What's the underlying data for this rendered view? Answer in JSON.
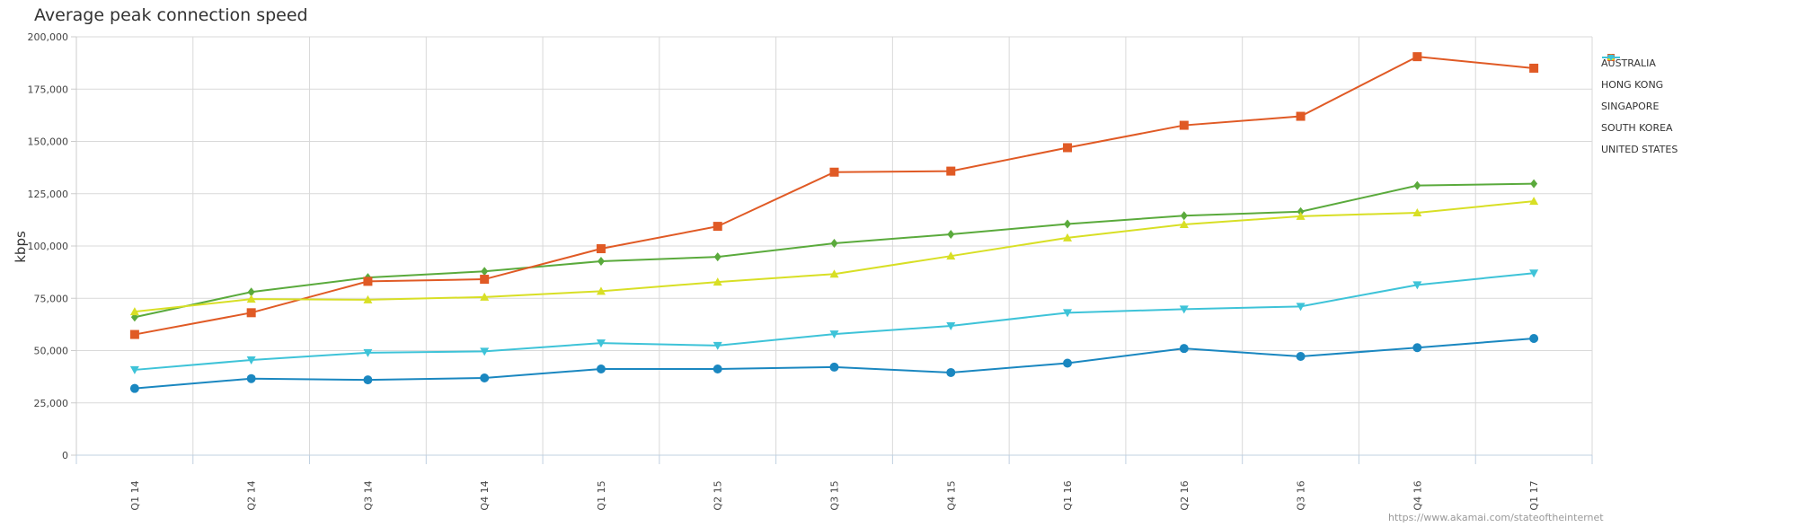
{
  "chart_data": {
    "type": "line",
    "title": "Average peak connection speed",
    "xlabel": "",
    "ylabel": "kbps",
    "ylim": [
      0,
      200000
    ],
    "yticks": [
      0,
      25000,
      50000,
      75000,
      100000,
      125000,
      150000,
      175000,
      200000
    ],
    "ytick_labels": [
      "0",
      "25,000",
      "50,000",
      "75,000",
      "100,000",
      "125,000",
      "150,000",
      "175,000",
      "200,000"
    ],
    "grid": true,
    "legend_position": "right",
    "categories": [
      "Q1 14",
      "Q2 14",
      "Q3 14",
      "Q4 14",
      "Q1 15",
      "Q2 15",
      "Q3 15",
      "Q4 15",
      "Q1 16",
      "Q2 16",
      "Q3 16",
      "Q4 16",
      "Q1 17"
    ],
    "series": [
      {
        "name": "AUSTRALIA",
        "color": "#1a87c0",
        "marker": "circle",
        "values": [
          31900,
          36600,
          36000,
          36900,
          41200,
          41200,
          42100,
          39500,
          44000,
          51000,
          47200,
          51400,
          55800
        ]
      },
      {
        "name": "HONG KONG",
        "color": "#5aaa3c",
        "marker": "diamond",
        "values": [
          66000,
          78000,
          84900,
          87900,
          92700,
          94800,
          101300,
          105600,
          110500,
          114500,
          116400,
          128900,
          129800
        ]
      },
      {
        "name": "SINGAPORE",
        "color": "#e05a25",
        "marker": "square",
        "values": [
          57700,
          68100,
          83100,
          84100,
          98700,
          109400,
          135300,
          135800,
          147000,
          157700,
          162000,
          190500,
          185000
        ]
      },
      {
        "name": "SOUTH KOREA",
        "color": "#d8df25",
        "marker": "triangle-up",
        "values": [
          68600,
          74600,
          74300,
          75600,
          78400,
          82800,
          86600,
          95200,
          103900,
          110300,
          114200,
          115900,
          121400
        ]
      },
      {
        "name": "UNITED STATES",
        "color": "#3ec3d8",
        "marker": "triangle-down",
        "values": [
          40800,
          45500,
          49000,
          49600,
          53600,
          52400,
          57900,
          61800,
          68100,
          69800,
          71100,
          81400,
          87000
        ]
      }
    ],
    "source": "https://www.akamai.com/stateoftheinternet"
  }
}
